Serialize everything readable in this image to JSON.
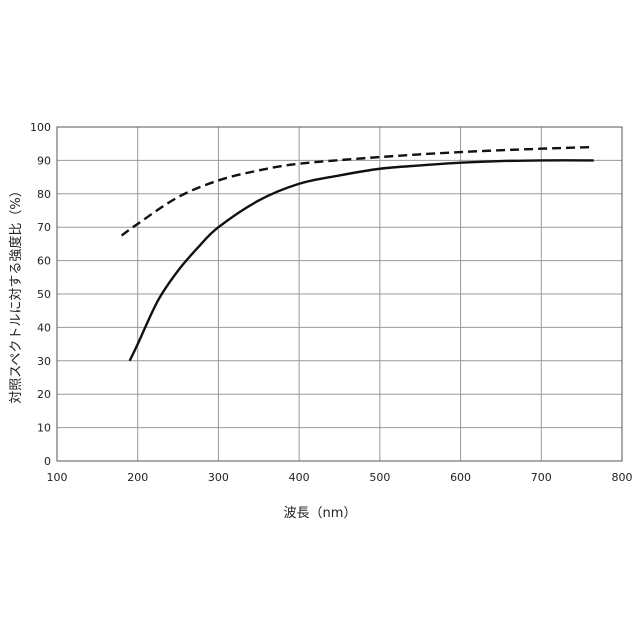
{
  "chart_data": {
    "type": "line",
    "xlabel": "波長（nm）",
    "ylabel": "対照スペクトルに対する強度比（%）",
    "xlim": [
      100,
      800
    ],
    "xticks": [
      100,
      200,
      300,
      400,
      500,
      600,
      700,
      800
    ],
    "ylim": [
      0,
      100
    ],
    "yticks": [
      0,
      10,
      20,
      30,
      40,
      50,
      60,
      70,
      80,
      90,
      100
    ],
    "grid": true,
    "series": [
      {
        "color": "#111111",
        "dashed": false,
        "x": [
          190,
          200,
          225,
          250,
          275,
          300,
          350,
          400,
          450,
          500,
          550,
          600,
          650,
          700,
          765
        ],
        "values": [
          30,
          35,
          48,
          57,
          64,
          70,
          78,
          83,
          85.5,
          87.5,
          88.5,
          89.3,
          89.8,
          90,
          90
        ]
      },
      {
        "color": "#111111",
        "dashed": true,
        "x": [
          180,
          200,
          250,
          300,
          350,
          400,
          500,
          600,
          700,
          765
        ],
        "values": [
          67.5,
          71,
          79,
          84,
          87,
          89,
          91,
          92.5,
          93.5,
          94
        ]
      }
    ]
  }
}
